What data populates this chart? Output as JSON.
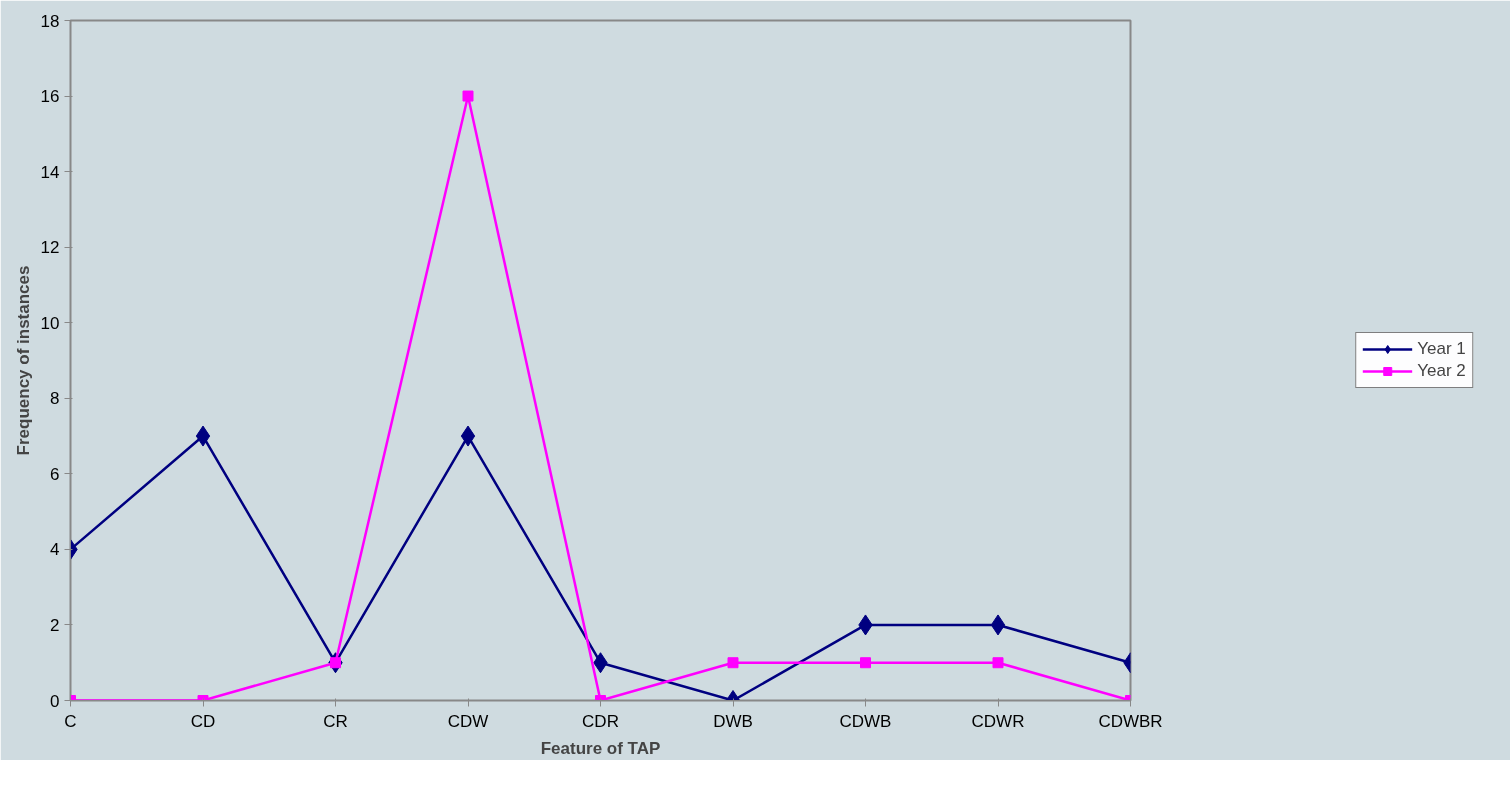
{
  "chart_data": {
    "type": "line",
    "xlabel": "Feature of TAP",
    "ylabel": "Frequency of instances",
    "categories": [
      "C",
      "CD",
      "CR",
      "CDW",
      "CDR",
      "DWB",
      "CDWB",
      "CDWR",
      "CDWBR"
    ],
    "series": [
      {
        "name": "Year 1",
        "color": "#000080",
        "marker": "diamond",
        "values": [
          4,
          7,
          1,
          7,
          1,
          0,
          2,
          2,
          1
        ]
      },
      {
        "name": "Year 2",
        "color": "#ff00ff",
        "marker": "square",
        "values": [
          0,
          0,
          1,
          16,
          0,
          1,
          1,
          1,
          0
        ]
      }
    ],
    "ylim": [
      0,
      18
    ],
    "yticks": [
      0,
      2,
      4,
      6,
      8,
      10,
      12,
      14,
      16,
      18
    ],
    "grid": false,
    "legend": "right",
    "line_style": "solid"
  }
}
